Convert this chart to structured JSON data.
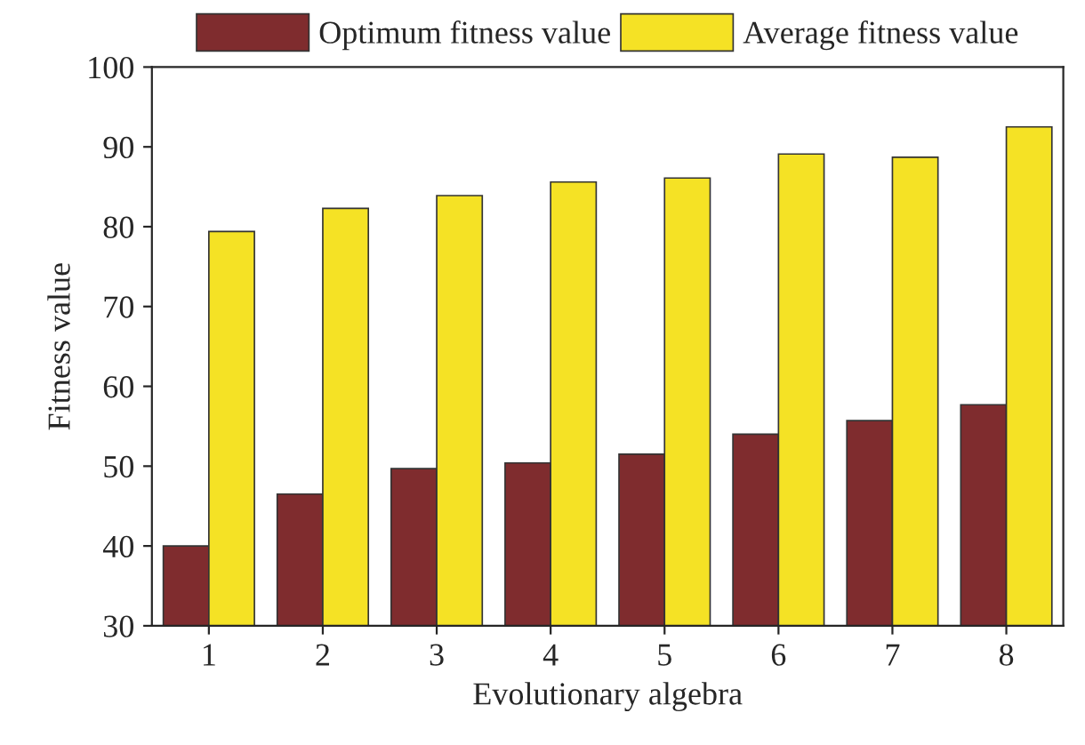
{
  "chart_data": {
    "type": "bar",
    "xlabel": "Evolutionary algebra",
    "ylabel": "Fitness value",
    "categories": [
      "1",
      "2",
      "3",
      "4",
      "5",
      "6",
      "7",
      "8"
    ],
    "series": [
      {
        "name": "Optimum fitness value",
        "color": "#7f2c2e",
        "values": [
          40,
          46.5,
          49.7,
          50.4,
          51.5,
          54,
          55.7,
          57.7
        ]
      },
      {
        "name": "Average fitness value",
        "color": "#f5e225",
        "values": [
          79.4,
          82.3,
          83.9,
          85.6,
          86.1,
          89.1,
          88.7,
          92.5
        ]
      }
    ],
    "ylim": [
      30,
      100
    ],
    "yticks": [
      30,
      40,
      50,
      60,
      70,
      80,
      90,
      100
    ],
    "legend": "top"
  }
}
